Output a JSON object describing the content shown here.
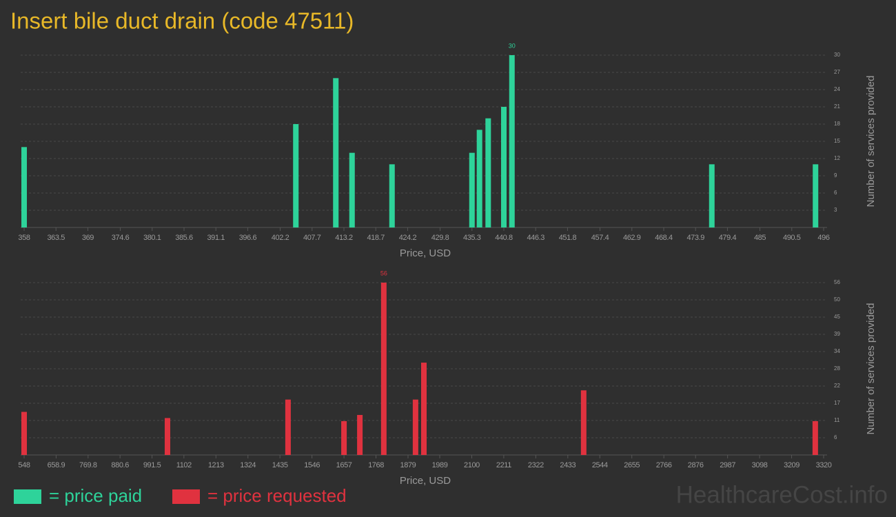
{
  "title": "Insert bile duct drain (code 47511)",
  "legend": [
    {
      "label": "= price paid",
      "color": "#2ed39a"
    },
    {
      "label": "= price requested",
      "color": "#e0323f"
    }
  ],
  "watermark": "HealthcareCost.info",
  "chart_data": [
    {
      "type": "bar",
      "xlabel": "Price, USD",
      "ylabel": "Number of services provided",
      "color": "#2ed39a",
      "grid": true,
      "label_max": true,
      "x": [
        358,
        404.9,
        411.8,
        414.6,
        421.5,
        435.3,
        436.6,
        438.1,
        440.8,
        442.2,
        476.7,
        494.6
      ],
      "values": [
        14,
        18,
        26,
        13,
        11,
        13,
        17,
        19,
        21,
        30,
        11,
        11
      ],
      "xlim": [
        358,
        496
      ],
      "xticks": [
        358,
        363.5,
        369,
        374.6,
        380.1,
        385.6,
        391.1,
        396.6,
        402.2,
        407.7,
        413.2,
        418.7,
        424.2,
        429.8,
        435.3,
        440.8,
        446.3,
        451.8,
        457.4,
        462.9,
        468.4,
        473.9,
        479.4,
        485,
        490.5,
        496
      ],
      "ylim": [
        0,
        30
      ],
      "yticks": [
        3,
        6,
        9,
        12,
        15,
        18,
        21,
        24,
        27,
        30
      ]
    },
    {
      "type": "bar",
      "xlabel": "Price, USD",
      "ylabel": "Number of services provided",
      "color": "#e0323f",
      "grid": true,
      "label_max": true,
      "x": [
        548,
        1045,
        1463,
        1657,
        1712,
        1795,
        1905,
        1934,
        2488,
        3291
      ],
      "values": [
        14,
        12,
        18,
        11,
        13,
        56,
        18,
        30,
        21,
        11
      ],
      "xlim": [
        548,
        3320
      ],
      "xticks": [
        548,
        658.9,
        769.8,
        880.6,
        991.5,
        1102,
        1213,
        1324,
        1435,
        1546,
        1657,
        1768,
        1879,
        1989,
        2100,
        2211,
        2322,
        2433,
        2544,
        2655,
        2766,
        2876,
        2987,
        3098,
        3209,
        3320
      ],
      "ylim": [
        0,
        56
      ],
      "yticks": [
        {
          "value": 5.6,
          "label": "6"
        },
        {
          "value": 11.2,
          "label": "11"
        },
        {
          "value": 16.8,
          "label": "17"
        },
        {
          "value": 22.4,
          "label": "22"
        },
        28,
        {
          "value": 33.6,
          "label": "34"
        },
        {
          "value": 39.2,
          "label": "39"
        },
        {
          "value": 44.8,
          "label": "45"
        },
        {
          "value": 50.4,
          "label": "50"
        },
        56
      ]
    }
  ]
}
